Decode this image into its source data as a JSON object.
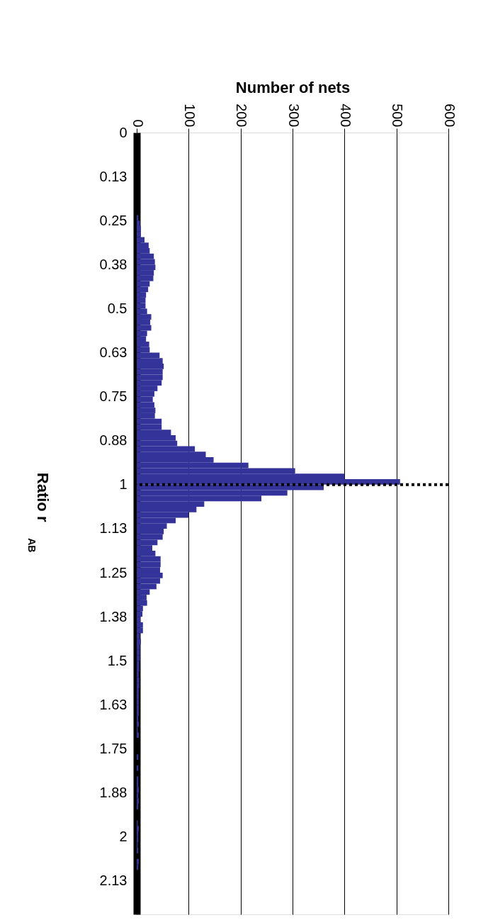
{
  "chart_data": {
    "type": "histogram",
    "orientation": "horizontal",
    "xlabel": "Number of nets",
    "ylabel": "Ratio r$_{AB}$",
    "bins": [
      0,
      0.015625,
      0.03125,
      0.046875,
      0.0625,
      0.078125,
      0.09375,
      0.109375,
      0.125,
      0.140625,
      0.15625,
      0.171875,
      0.1875,
      0.203125,
      0.21875,
      0.234375,
      0.25,
      0.265625,
      0.28125,
      0.296875,
      0.3125,
      0.328125,
      0.34375,
      0.359375,
      0.375,
      0.390625,
      0.40625,
      0.421875,
      0.4375,
      0.453125,
      0.46875,
      0.484375,
      0.5,
      0.515625,
      0.53125,
      0.546875,
      0.5625,
      0.578125,
      0.59375,
      0.609375,
      0.625,
      0.640625,
      0.65625,
      0.671875,
      0.6875,
      0.703125,
      0.71875,
      0.734375,
      0.75,
      0.765625,
      0.78125,
      0.796875,
      0.8125,
      0.828125,
      0.84375,
      0.859375,
      0.875,
      0.890625,
      0.90625,
      0.921875,
      0.9375,
      0.953125,
      0.96875,
      0.984375,
      1,
      1.015625,
      1.03125,
      1.046875,
      1.0625,
      1.078125,
      1.09375,
      1.109375,
      1.125,
      1.140625,
      1.15625,
      1.171875,
      1.1875,
      1.203125,
      1.21875,
      1.234375,
      1.25,
      1.265625,
      1.28125,
      1.296875,
      1.3125,
      1.328125,
      1.34375,
      1.359375,
      1.375,
      1.390625,
      1.40625,
      1.421875,
      1.4375,
      1.453125,
      1.46875,
      1.484375,
      1.5,
      1.515625,
      1.53125,
      1.546875,
      1.5625,
      1.578125,
      1.59375,
      1.609375,
      1.625,
      1.640625,
      1.65625,
      1.671875,
      1.6875,
      1.703125,
      1.71875,
      1.734375,
      1.75,
      1.765625,
      1.78125,
      1.796875,
      1.8125,
      1.828125,
      1.84375,
      1.859375,
      1.875,
      1.890625,
      1.90625,
      1.921875,
      1.9375,
      1.953125,
      1.96875,
      1.984375,
      2,
      2.015625,
      2.03125,
      2.046875,
      2.0625,
      2.078125,
      2.09375,
      2.109375,
      2.125,
      2.140625,
      2.15625,
      2.171875,
      2.1875,
      2.203125,
      2.21875
    ],
    "values": [
      0,
      0,
      0,
      0,
      0,
      0,
      0,
      0,
      0,
      0,
      0,
      0,
      0,
      0,
      0,
      3,
      6,
      8,
      8,
      15,
      23,
      25,
      33,
      35,
      36,
      33,
      32,
      25,
      22,
      18,
      17,
      17,
      20,
      28,
      26,
      28,
      20,
      18,
      24,
      25,
      44,
      50,
      52,
      50,
      50,
      48,
      40,
      34,
      31,
      34,
      36,
      35,
      48,
      48,
      66,
      75,
      78,
      112,
      133,
      148,
      215,
      305,
      400,
      507,
      360,
      290,
      240,
      130,
      115,
      100,
      75,
      58,
      52,
      50,
      40,
      30,
      36,
      46,
      46,
      45,
      50,
      45,
      38,
      25,
      19,
      20,
      12,
      11,
      7,
      12,
      12,
      6,
      8,
      6,
      6,
      6,
      5,
      5,
      4,
      5,
      5,
      4,
      4,
      4,
      4,
      4,
      3,
      4,
      2,
      4,
      0,
      0,
      0,
      3,
      0,
      3,
      0,
      3,
      3,
      4,
      3,
      4,
      3,
      0,
      0,
      2,
      4,
      3,
      3,
      2,
      3,
      0,
      4,
      3,
      0,
      0,
      0,
      0,
      0,
      0,
      0,
      0
    ],
    "color": "#333399",
    "xlim": [
      0,
      600
    ],
    "xticks": [
      0,
      100,
      200,
      300,
      400,
      500,
      600
    ],
    "ylim": [
      2.22,
      0
    ],
    "yticks": [
      0,
      {
        "value": 0.125,
        "label": "0.13"
      },
      0.25,
      {
        "value": 0.375,
        "label": "0.38"
      },
      0.5,
      {
        "value": 0.625,
        "label": "0.63"
      },
      0.75,
      {
        "value": 0.875,
        "label": "0.88"
      },
      1,
      {
        "value": 1.125,
        "label": "1.13"
      },
      1.25,
      {
        "value": 1.375,
        "label": "1.38"
      },
      1.5,
      {
        "value": 1.625,
        "label": "1.63"
      },
      1.75,
      {
        "value": 1.875,
        "label": "1.88"
      },
      2,
      {
        "value": 2.125,
        "label": "2.13"
      }
    ],
    "grid": "x",
    "ref_lines": [
      {
        "axis": "y",
        "value": 1,
        "label": null,
        "color": "#000000",
        "line_style": "dotted"
      }
    ]
  }
}
